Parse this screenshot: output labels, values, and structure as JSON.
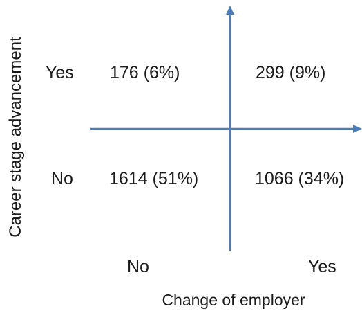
{
  "y_axis": {
    "title": "Career stage advancement",
    "categories": [
      "Yes",
      "No"
    ]
  },
  "x_axis": {
    "title": "Change of employer",
    "categories": [
      "No",
      "Yes"
    ]
  },
  "cells": {
    "top_left": "176 (6%)",
    "top_right": "299 (9%)",
    "bottom_left": "1614 (51%)",
    "bottom_right": "1066 (34%)"
  },
  "colors": {
    "axis": "#4a7ebb",
    "text": "#1a1a1a"
  }
}
